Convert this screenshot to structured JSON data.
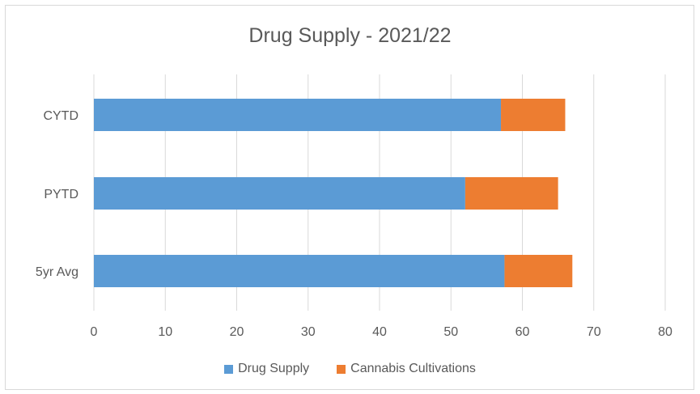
{
  "chart_data": {
    "type": "bar",
    "orientation": "horizontal",
    "stacked": true,
    "title": "Drug Supply - 2021/22",
    "categories": [
      "CYTD",
      "PYTD",
      "5yr Avg"
    ],
    "series": [
      {
        "name": "Drug Supply",
        "color": "#5b9bd5",
        "values": [
          57,
          52,
          57.5
        ]
      },
      {
        "name": "Cannabis Cultivations",
        "color": "#ed7d31",
        "values": [
          9,
          13,
          9.5
        ]
      }
    ],
    "xlim": [
      0,
      80
    ],
    "xticks": [
      "0",
      "10",
      "20",
      "30",
      "40",
      "50",
      "60",
      "70",
      "80"
    ],
    "grid": true,
    "legend": "bottom"
  }
}
